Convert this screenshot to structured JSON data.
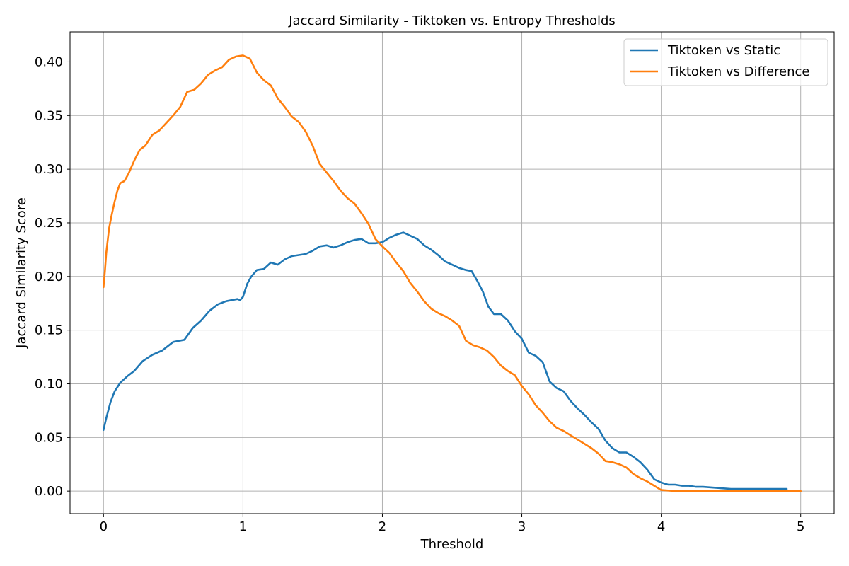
{
  "chart_data": {
    "type": "line",
    "title": "Jaccard Similarity - Tiktoken vs. Entropy Thresholds",
    "xlabel": "Threshold",
    "ylabel": "Jaccard Similarity Score",
    "xlim": [
      -0.24,
      5.24
    ],
    "ylim": [
      -0.021,
      0.428
    ],
    "xticks": [
      0,
      1,
      2,
      3,
      4,
      5
    ],
    "xtick_labels": [
      "0",
      "1",
      "2",
      "3",
      "4",
      "5"
    ],
    "yticks": [
      0.0,
      0.05,
      0.1,
      0.15,
      0.2,
      0.25,
      0.3,
      0.35,
      0.4
    ],
    "ytick_labels": [
      "0.00",
      "0.05",
      "0.10",
      "0.15",
      "0.20",
      "0.25",
      "0.30",
      "0.35",
      "0.40"
    ],
    "grid": true,
    "legend_position": "upper right",
    "series": [
      {
        "name": "Tiktoken vs Static",
        "color": "#1f77b4",
        "x": [
          0.0,
          0.02,
          0.05,
          0.08,
          0.12,
          0.17,
          0.22,
          0.28,
          0.35,
          0.42,
          0.5,
          0.58,
          0.64,
          0.7,
          0.76,
          0.82,
          0.88,
          0.92,
          0.96,
          0.98,
          1.0,
          1.03,
          1.06,
          1.1,
          1.15,
          1.2,
          1.25,
          1.3,
          1.35,
          1.4,
          1.45,
          1.5,
          1.55,
          1.6,
          1.65,
          1.7,
          1.75,
          1.8,
          1.85,
          1.9,
          1.95,
          2.0,
          2.05,
          2.1,
          2.15,
          2.2,
          2.25,
          2.3,
          2.35,
          2.4,
          2.45,
          2.5,
          2.55,
          2.6,
          2.64,
          2.68,
          2.72,
          2.76,
          2.8,
          2.85,
          2.9,
          2.95,
          3.0,
          3.05,
          3.1,
          3.15,
          3.2,
          3.25,
          3.3,
          3.35,
          3.4,
          3.45,
          3.5,
          3.55,
          3.6,
          3.65,
          3.7,
          3.75,
          3.8,
          3.85,
          3.9,
          3.95,
          4.0,
          4.05,
          4.1,
          4.15,
          4.2,
          4.25,
          4.3,
          4.4,
          4.5,
          4.6,
          4.7,
          4.8,
          4.9
        ],
        "y": [
          0.057,
          0.068,
          0.083,
          0.093,
          0.101,
          0.107,
          0.112,
          0.121,
          0.127,
          0.131,
          0.139,
          0.141,
          0.152,
          0.159,
          0.168,
          0.174,
          0.177,
          0.178,
          0.179,
          0.178,
          0.181,
          0.193,
          0.2,
          0.206,
          0.207,
          0.213,
          0.211,
          0.216,
          0.219,
          0.22,
          0.221,
          0.224,
          0.228,
          0.229,
          0.227,
          0.229,
          0.232,
          0.234,
          0.235,
          0.231,
          0.231,
          0.232,
          0.236,
          0.239,
          0.241,
          0.238,
          0.235,
          0.229,
          0.225,
          0.22,
          0.214,
          0.211,
          0.208,
          0.206,
          0.205,
          0.196,
          0.186,
          0.172,
          0.165,
          0.165,
          0.159,
          0.149,
          0.142,
          0.129,
          0.126,
          0.12,
          0.102,
          0.096,
          0.093,
          0.084,
          0.077,
          0.071,
          0.064,
          0.058,
          0.047,
          0.04,
          0.036,
          0.036,
          0.032,
          0.027,
          0.02,
          0.011,
          0.008,
          0.006,
          0.006,
          0.005,
          0.005,
          0.004,
          0.004,
          0.003,
          0.002,
          0.002,
          0.002,
          0.002,
          0.002
        ]
      },
      {
        "name": "Tiktoken vs Difference",
        "color": "#ff7f0e",
        "x": [
          0.0,
          0.01,
          0.02,
          0.04,
          0.06,
          0.08,
          0.1,
          0.12,
          0.15,
          0.18,
          0.22,
          0.26,
          0.3,
          0.35,
          0.4,
          0.45,
          0.5,
          0.55,
          0.6,
          0.65,
          0.7,
          0.75,
          0.8,
          0.85,
          0.9,
          0.95,
          1.0,
          1.05,
          1.1,
          1.15,
          1.2,
          1.25,
          1.3,
          1.35,
          1.4,
          1.45,
          1.5,
          1.55,
          1.6,
          1.65,
          1.7,
          1.75,
          1.8,
          1.85,
          1.9,
          1.95,
          2.0,
          2.05,
          2.1,
          2.15,
          2.2,
          2.25,
          2.3,
          2.35,
          2.4,
          2.45,
          2.5,
          2.55,
          2.6,
          2.65,
          2.7,
          2.75,
          2.8,
          2.85,
          2.9,
          2.95,
          3.0,
          3.05,
          3.1,
          3.15,
          3.2,
          3.25,
          3.3,
          3.35,
          3.4,
          3.45,
          3.5,
          3.55,
          3.6,
          3.65,
          3.7,
          3.75,
          3.8,
          3.85,
          3.9,
          3.95,
          4.0,
          4.1,
          4.2,
          4.4,
          4.6,
          4.8,
          5.0
        ],
        "y": [
          0.19,
          0.205,
          0.222,
          0.245,
          0.258,
          0.27,
          0.28,
          0.287,
          0.289,
          0.296,
          0.308,
          0.318,
          0.322,
          0.332,
          0.336,
          0.343,
          0.35,
          0.358,
          0.372,
          0.374,
          0.38,
          0.388,
          0.392,
          0.395,
          0.402,
          0.405,
          0.406,
          0.403,
          0.39,
          0.383,
          0.378,
          0.366,
          0.358,
          0.349,
          0.344,
          0.335,
          0.322,
          0.305,
          0.297,
          0.289,
          0.28,
          0.273,
          0.268,
          0.259,
          0.249,
          0.235,
          0.228,
          0.222,
          0.213,
          0.205,
          0.194,
          0.186,
          0.177,
          0.17,
          0.166,
          0.163,
          0.159,
          0.154,
          0.14,
          0.136,
          0.134,
          0.131,
          0.125,
          0.117,
          0.112,
          0.108,
          0.098,
          0.09,
          0.08,
          0.073,
          0.065,
          0.059,
          0.056,
          0.052,
          0.048,
          0.044,
          0.04,
          0.035,
          0.028,
          0.027,
          0.025,
          0.022,
          0.016,
          0.012,
          0.009,
          0.005,
          0.001,
          0.0,
          0.0,
          0.0,
          0.0,
          0.0,
          0.0
        ]
      }
    ]
  }
}
